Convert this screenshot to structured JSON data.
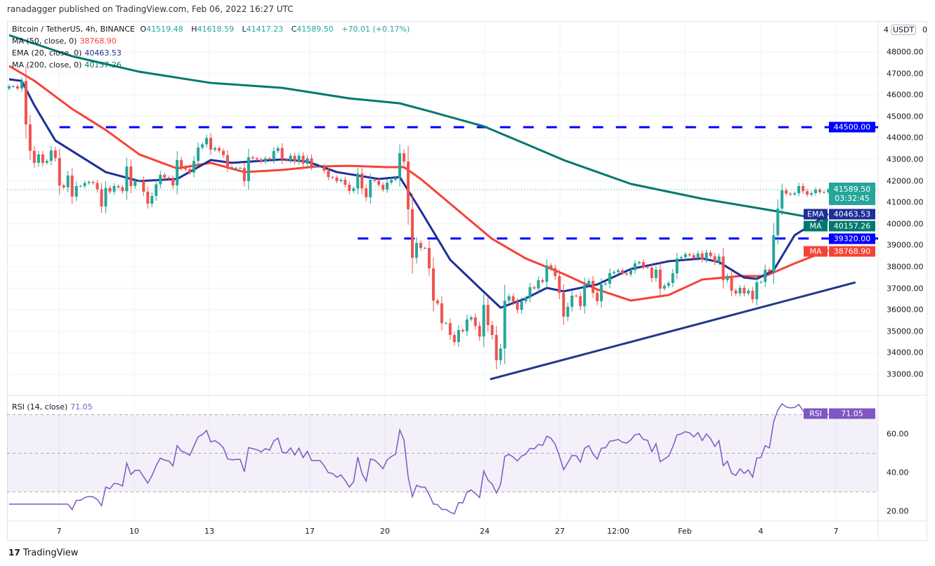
{
  "header": {
    "published": "ranadagger published on TradingView.com, Feb 06, 2022 16:27 UTC",
    "symbol": "Bitcoin / TetherUS, 4h, BINANCE",
    "open_label": "O",
    "open": "41519.48",
    "high_label": "H",
    "high": "41618.59",
    "low_label": "L",
    "low": "41417.23",
    "close_label": "C",
    "close": "41589.50",
    "change": "+70.01 (+0.17%)"
  },
  "indicators": {
    "ma50": {
      "label": "MA (50, close, 0)",
      "value": "38768.90",
      "color": "#f44336"
    },
    "ema20": {
      "label": "EMA (20, close, 0)",
      "value": "40463.53",
      "color": "#1e2f97"
    },
    "ma200": {
      "label": "MA (200, close, 0)",
      "value": "40157.26",
      "color": "#00796b"
    },
    "rsi": {
      "label": "RSI (14, close)",
      "value": "71.05",
      "color": "#7e57c2"
    }
  },
  "price_axis": {
    "currency": "USDT",
    "top_partial_left": "4",
    "top_partial_right": "0",
    "ticks": [
      "48000.00",
      "47000.00",
      "46000.00",
      "45000.00",
      "44000.00",
      "43000.00",
      "42000.00",
      "41000.00",
      "40000.00",
      "39000.00",
      "38000.00",
      "37000.00",
      "36000.00",
      "35000.00",
      "34000.00",
      "33000.00"
    ]
  },
  "price_tags": {
    "level_44500": "44500.00",
    "last_price": "41589.50",
    "countdown": "03:32:45",
    "ema_tag": "EMA",
    "ema_value": "40463.53",
    "ma200_tag": "MA",
    "ma200_value": "40157.26",
    "level_39320": "39320.00",
    "ma50_tag": "MA",
    "ma50_value": "38768.90",
    "rsi_tag": "RSI",
    "rsi_value": "71.05"
  },
  "rsi_axis": {
    "ticks": [
      "60.00",
      "40.00",
      "20.00"
    ]
  },
  "time_axis": {
    "ticks": [
      "7",
      "10",
      "13",
      "17",
      "20",
      "24",
      "27",
      "12:00",
      "Feb",
      "4",
      "7"
    ]
  },
  "footer": {
    "brand": "TradingView"
  },
  "chart_data": {
    "type": "candlestick",
    "interval": "4h",
    "symbol": "BTCUSDT",
    "ylim": [
      32500,
      49000
    ],
    "grid": true,
    "colors": {
      "up": "#26a69a",
      "down": "#ef5350",
      "level": "#0000ff",
      "trendline": "#1e3a8a"
    },
    "closes": [
      46400,
      46400,
      46300,
      46650,
      44630,
      43400,
      42840,
      43230,
      42840,
      42930,
      43420,
      43060,
      41790,
      41700,
      42250,
      41270,
      41760,
      41760,
      41900,
      41950,
      41900,
      41600,
      40810,
      41670,
      41500,
      41760,
      41700,
      41520,
      42670,
      41760,
      41990,
      42000,
      41500,
      40940,
      41300,
      41840,
      42280,
      42150,
      42100,
      41790,
      42970,
      42640,
      42540,
      42390,
      42930,
      43550,
      43700,
      44000,
      43450,
      43530,
      43400,
      43200,
      42640,
      42580,
      42600,
      42600,
      41990,
      43100,
      43050,
      43000,
      42900,
      43050,
      42990,
      43390,
      43530,
      43000,
      42960,
      43170,
      42900,
      43170,
      42800,
      43050,
      42670,
      42670,
      42670,
      42470,
      42180,
      42150,
      41990,
      42050,
      41820,
      41530,
      41650,
      42340,
      41650,
      41240,
      42050,
      42000,
      41820,
      41600,
      41920,
      42050,
      42140,
      43290,
      42900,
      40680,
      38420,
      39110,
      38880,
      38880,
      37930,
      36430,
      36300,
      35380,
      35380,
      34830,
      34500,
      35060,
      35000,
      35550,
      35650,
      35250,
      34760,
      36230,
      35290,
      34830,
      33650,
      34200,
      36430,
      36630,
      36370,
      36000,
      36400,
      36560,
      37050,
      37000,
      37380,
      37300,
      38070,
      37940,
      37570,
      36790,
      35680,
      36140,
      36660,
      36640,
      36170,
      37150,
      37350,
      36790,
      36400,
      37180,
      37220,
      37710,
      37760,
      37840,
      37700,
      37650,
      37840,
      38160,
      38220,
      37990,
      37960,
      37480,
      37870,
      36990,
      37120,
      37250,
      37700,
      38390,
      38450,
      38590,
      38540,
      38400,
      38620,
      38340,
      38660,
      38500,
      38220,
      38480,
      37380,
      37570,
      36890,
      36760,
      37020,
      36760,
      36890,
      36490,
      37280,
      37300,
      37870,
      37770,
      39470,
      40710,
      41560,
      41410,
      41370,
      41430,
      41760,
      41520,
      41360,
      41430,
      41590,
      41480,
      41480,
      41589.5
    ],
    "ma200": [
      [
        0,
        48780
      ],
      [
        15,
        47800
      ],
      [
        31,
        47080
      ],
      [
        48,
        46560
      ],
      [
        65,
        46330
      ],
      [
        81,
        45840
      ],
      [
        93,
        45610
      ],
      [
        101,
        45190
      ],
      [
        113,
        44540
      ],
      [
        123,
        43720
      ],
      [
        132,
        42970
      ],
      [
        148,
        41860
      ],
      [
        165,
        41170
      ],
      [
        182,
        40610
      ],
      [
        195,
        40157.26
      ]
    ],
    "ema20": [
      [
        0,
        46730
      ],
      [
        3,
        46650
      ],
      [
        6,
        45520
      ],
      [
        11,
        43880
      ],
      [
        15,
        43390
      ],
      [
        23,
        42410
      ],
      [
        31,
        41990
      ],
      [
        40,
        42090
      ],
      [
        48,
        42970
      ],
      [
        53,
        42840
      ],
      [
        65,
        43000
      ],
      [
        71,
        42900
      ],
      [
        78,
        42410
      ],
      [
        88,
        42090
      ],
      [
        93,
        42180
      ],
      [
        98,
        40610
      ],
      [
        105,
        38330
      ],
      [
        112,
        37020
      ],
      [
        117,
        36100
      ],
      [
        123,
        36530
      ],
      [
        128,
        37020
      ],
      [
        132,
        36860
      ],
      [
        140,
        37180
      ],
      [
        148,
        37900
      ],
      [
        157,
        38260
      ],
      [
        165,
        38390
      ],
      [
        169,
        38220
      ],
      [
        175,
        37500
      ],
      [
        178,
        37440
      ],
      [
        182,
        37840
      ],
      [
        187,
        39470
      ],
      [
        195,
        40463.53
      ]
    ],
    "ma50": [
      [
        0,
        47350
      ],
      [
        6,
        46660
      ],
      [
        15,
        45350
      ],
      [
        23,
        44370
      ],
      [
        31,
        43230
      ],
      [
        40,
        42580
      ],
      [
        48,
        42840
      ],
      [
        56,
        42410
      ],
      [
        65,
        42510
      ],
      [
        73,
        42670
      ],
      [
        81,
        42700
      ],
      [
        90,
        42640
      ],
      [
        94,
        42640
      ],
      [
        98,
        42090
      ],
      [
        107,
        40610
      ],
      [
        115,
        39300
      ],
      [
        123,
        38390
      ],
      [
        132,
        37670
      ],
      [
        140,
        36950
      ],
      [
        148,
        36430
      ],
      [
        157,
        36690
      ],
      [
        165,
        37410
      ],
      [
        174,
        37570
      ],
      [
        180,
        37570
      ],
      [
        187,
        38160
      ],
      [
        195,
        38768.9
      ]
    ],
    "horizontal_levels": [
      {
        "price": 44500,
        "from_index": 12
      },
      {
        "price": 39320,
        "from_index": 83
      }
    ],
    "trendline": [
      [
        114.5,
        32770
      ],
      [
        201.5,
        37280
      ]
    ],
    "rsi_levels": {
      "upper": 70,
      "middle": 50,
      "lower": 30
    }
  }
}
